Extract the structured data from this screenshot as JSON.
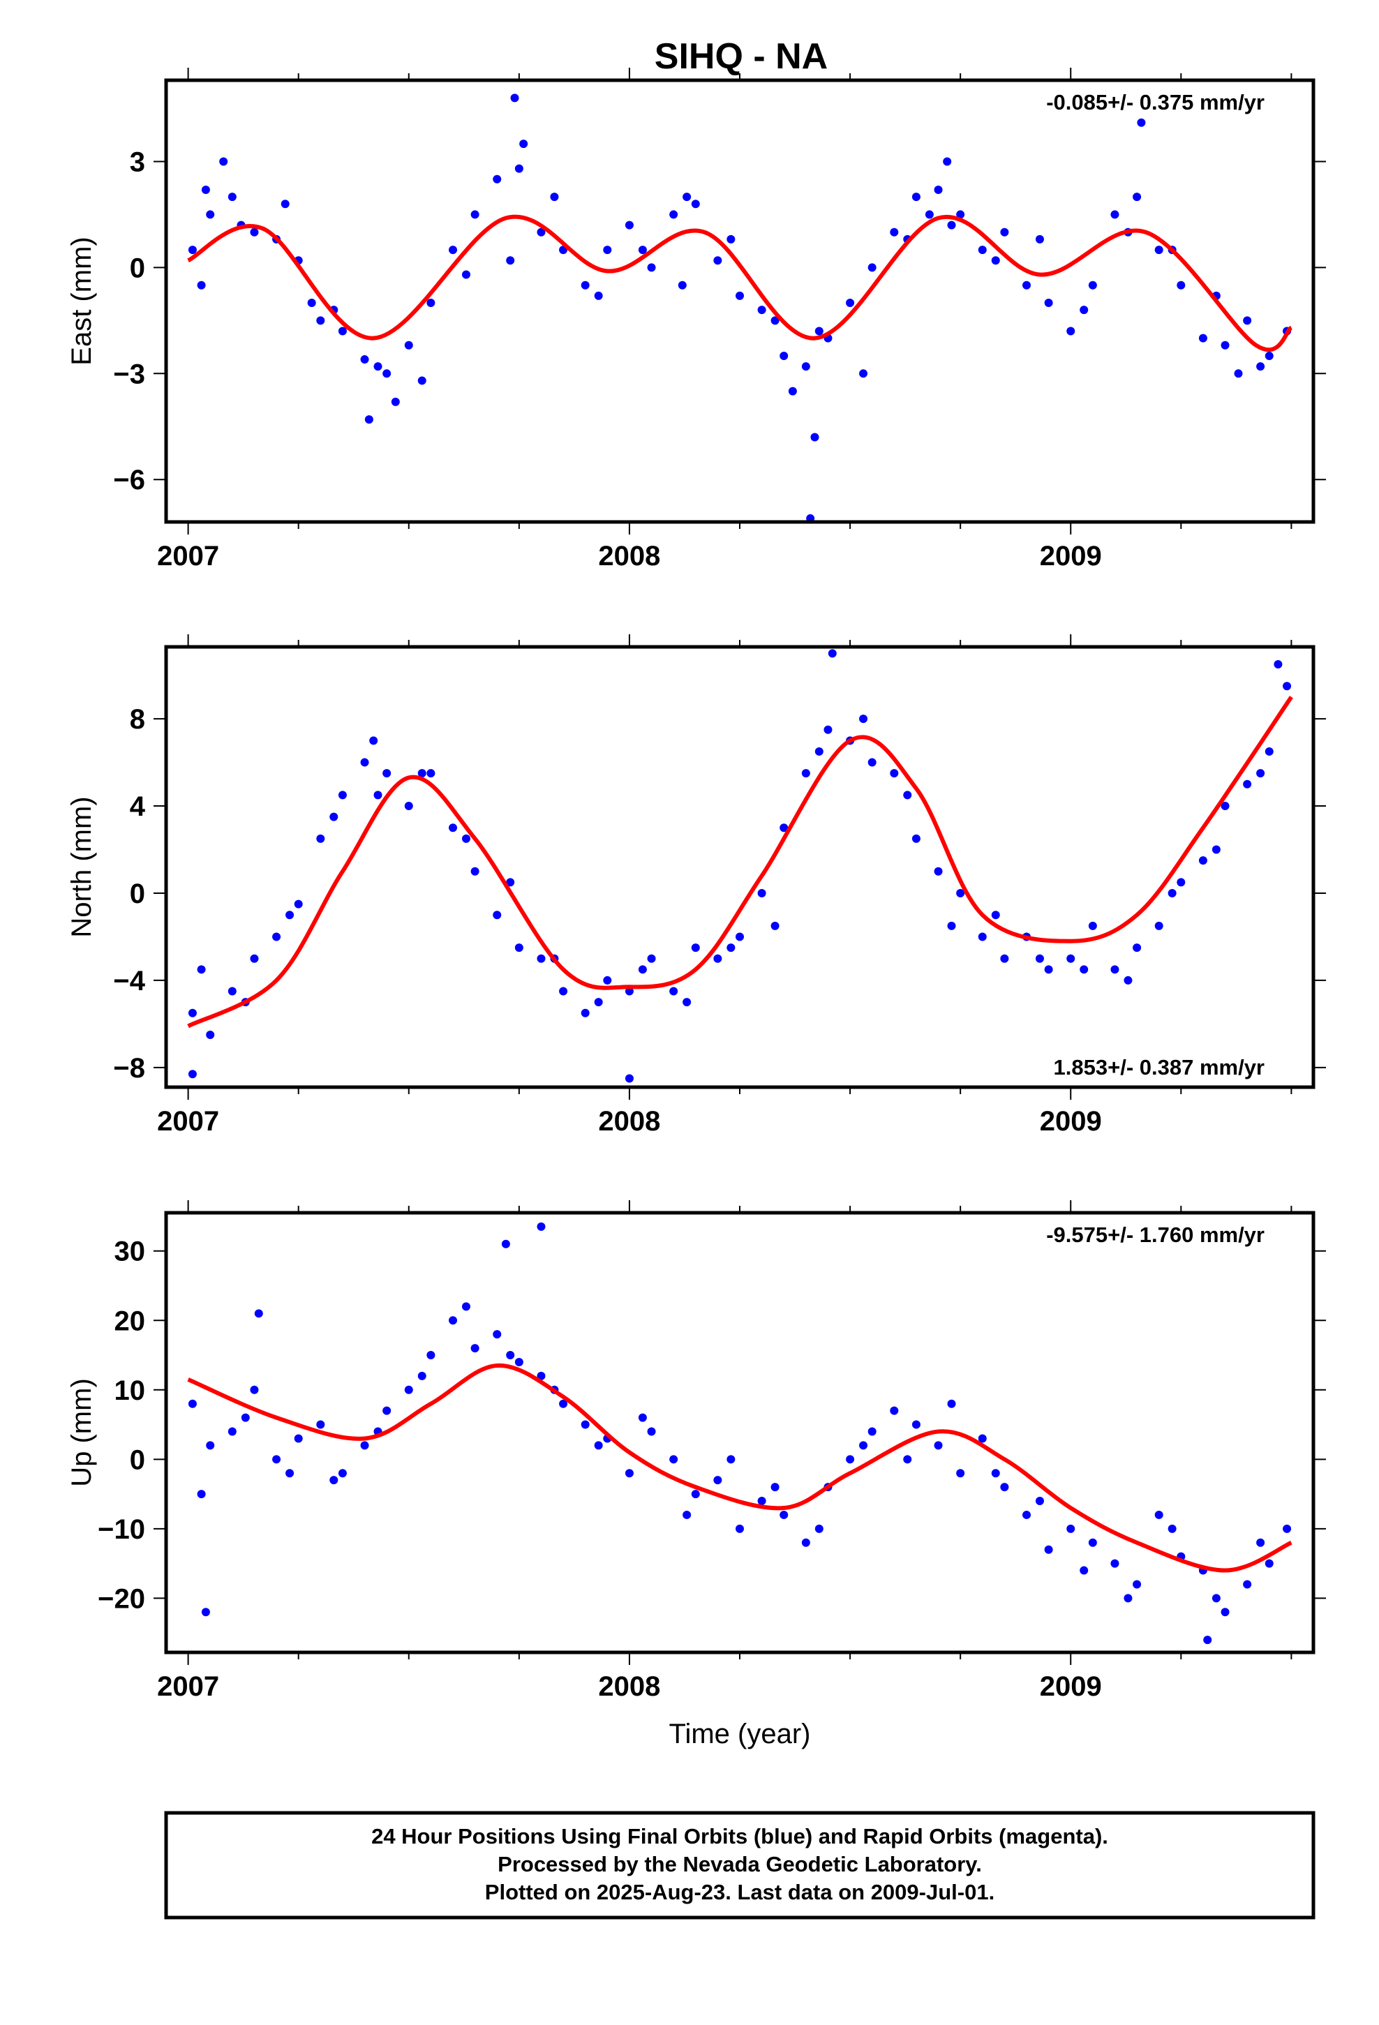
{
  "title": "SIHQ - NA",
  "chart_data": [
    {
      "type": "scatter",
      "component": "East",
      "ylabel": "East (mm)",
      "ylim": [
        -7.2,
        5.3
      ],
      "yticks": [
        3,
        0,
        -3,
        -6
      ],
      "ytick_labels": [
        "3",
        "0",
        "−3",
        "−6"
      ],
      "xlim": [
        2006.95,
        2009.55
      ],
      "xticks": [
        2007,
        2008,
        2009
      ],
      "xtick_labels": [
        "2007",
        "2008",
        "2009"
      ],
      "rate": "-0.085+/- 0.375 mm/yr",
      "rate_position": "top-right",
      "fit": {
        "x": [
          2007.0,
          2007.17,
          2007.42,
          2007.72,
          2007.95,
          2008.17,
          2008.42,
          2008.7,
          2008.93,
          2009.17,
          2009.42,
          2009.5
        ],
        "y": [
          0.2,
          1.1,
          -2.0,
          1.4,
          -0.1,
          1.0,
          -2.0,
          1.4,
          -0.2,
          1.0,
          -2.2,
          -1.7
        ]
      },
      "series": [
        {
          "name": "Final Orbits",
          "color": "#0000ff",
          "x": [
            2007.01,
            2007.05,
            2007.1,
            2007.15,
            2007.2,
            2007.25,
            2007.3,
            2007.35,
            2007.4,
            2007.45,
            2007.5,
            2007.55,
            2007.6,
            2007.65,
            2007.7,
            2007.75,
            2007.8,
            2007.85,
            2007.9,
            2007.95,
            2008.0,
            2008.05,
            2008.1,
            2008.15,
            2008.2,
            2008.25,
            2008.3,
            2008.35,
            2008.4,
            2008.45,
            2008.5,
            2008.55,
            2008.6,
            2008.65,
            2008.7,
            2008.75,
            2008.8,
            2008.85,
            2008.9,
            2008.95,
            2009.0,
            2009.05,
            2009.1,
            2009.15,
            2009.2,
            2009.25,
            2009.3,
            2009.35,
            2009.4,
            2009.45,
            2009.49,
            2007.04,
            2007.12,
            2007.22,
            2007.33,
            2007.43,
            2007.53,
            2007.63,
            2007.73,
            2007.83,
            2007.93,
            2008.03,
            2008.13,
            2008.23,
            2008.33,
            2008.43,
            2008.53,
            2008.63,
            2008.73,
            2008.83,
            2008.93,
            2009.03,
            2009.13,
            2009.23,
            2009.33,
            2009.43,
            2007.08,
            2007.28,
            2007.41,
            2007.47,
            2007.76,
            2008.12,
            2008.37,
            2008.42,
            2008.72,
            2009.16,
            2009.38,
            2007.74,
            2008.41,
            2007.03,
            2008.68
          ],
          "y": [
            0.5,
            1.5,
            2.0,
            1.0,
            0.8,
            0.2,
            -1.5,
            -1.8,
            -2.6,
            -3.0,
            -2.2,
            -1.0,
            0.5,
            1.5,
            2.5,
            2.8,
            1.0,
            0.5,
            -0.5,
            0.5,
            1.2,
            0.0,
            1.5,
            1.8,
            0.2,
            -0.8,
            -1.2,
            -2.5,
            -2.8,
            -2.0,
            -1.0,
            0.0,
            1.0,
            2.0,
            2.2,
            1.5,
            0.5,
            1.0,
            -0.5,
            -1.0,
            -1.8,
            -0.5,
            1.5,
            2.0,
            0.5,
            -0.5,
            -2.0,
            -2.2,
            -1.5,
            -2.5,
            -1.8,
            2.2,
            1.2,
            1.8,
            -1.2,
            -2.8,
            -3.2,
            -0.2,
            0.2,
            2.0,
            -0.8,
            0.5,
            2.0,
            0.8,
            -1.5,
            -1.8,
            -3.0,
            0.8,
            1.2,
            0.2,
            0.8,
            -1.2,
            1.0,
            0.5,
            -0.8,
            -2.8,
            3.0,
            -1.0,
            -4.3,
            -3.8,
            3.5,
            -0.5,
            -3.5,
            -4.8,
            3.0,
            4.1,
            -3.0,
            4.8,
            -7.1,
            -0.5,
            1.5
          ]
        }
      ]
    },
    {
      "type": "scatter",
      "component": "North",
      "ylabel": "North (mm)",
      "ylim": [
        -8.9,
        11.3
      ],
      "yticks": [
        8,
        4,
        0,
        -4,
        -8
      ],
      "ytick_labels": [
        "8",
        "4",
        "0",
        "−4",
        "−8"
      ],
      "xlim": [
        2006.95,
        2009.55
      ],
      "xticks": [
        2007,
        2008,
        2009
      ],
      "xtick_labels": [
        "2007",
        "2008",
        "2009"
      ],
      "rate": "1.853+/- 0.387 mm/yr",
      "rate_position": "bottom-right",
      "fit": {
        "x": [
          2007.0,
          2007.2,
          2007.35,
          2007.5,
          2007.65,
          2007.85,
          2008.0,
          2008.15,
          2008.3,
          2008.5,
          2008.65,
          2008.8,
          2009.0,
          2009.15,
          2009.3,
          2009.5
        ],
        "y": [
          -6.1,
          -4.0,
          1.0,
          5.3,
          2.5,
          -3.5,
          -4.3,
          -3.5,
          0.8,
          7.0,
          4.8,
          -1.0,
          -2.2,
          -1.0,
          3.0,
          9.0
        ]
      },
      "series": [
        {
          "name": "Final Orbits",
          "color": "#0000ff",
          "x": [
            2007.01,
            2007.05,
            2007.1,
            2007.15,
            2007.2,
            2007.25,
            2007.3,
            2007.35,
            2007.4,
            2007.45,
            2007.5,
            2007.55,
            2007.6,
            2007.65,
            2007.7,
            2007.75,
            2007.8,
            2007.85,
            2007.9,
            2007.95,
            2008.0,
            2008.05,
            2008.1,
            2008.15,
            2008.2,
            2008.25,
            2008.3,
            2008.35,
            2008.4,
            2008.45,
            2008.5,
            2008.55,
            2008.6,
            2008.65,
            2008.7,
            2008.75,
            2008.8,
            2008.85,
            2008.9,
            2008.95,
            2009.0,
            2009.05,
            2009.1,
            2009.15,
            2009.2,
            2009.25,
            2009.3,
            2009.35,
            2009.4,
            2009.45,
            2009.49,
            2007.03,
            2007.13,
            2007.23,
            2007.33,
            2007.43,
            2007.53,
            2007.63,
            2007.73,
            2007.83,
            2007.93,
            2008.03,
            2008.13,
            2008.23,
            2008.33,
            2008.43,
            2008.53,
            2008.63,
            2008.73,
            2008.83,
            2008.93,
            2009.03,
            2009.13,
            2009.23,
            2009.33,
            2009.43,
            2008.46,
            2007.42,
            2008.0,
            2007.01,
            2009.47
          ],
          "y": [
            -5.5,
            -6.5,
            -4.5,
            -3.0,
            -2.0,
            -0.5,
            2.5,
            4.5,
            6.0,
            5.5,
            4.0,
            5.5,
            3.0,
            1.0,
            -1.0,
            -2.5,
            -3.0,
            -4.5,
            -5.5,
            -4.0,
            -4.5,
            -3.0,
            -4.5,
            -2.5,
            -3.0,
            -2.0,
            0.0,
            3.0,
            5.5,
            7.5,
            7.0,
            6.0,
            5.5,
            2.5,
            1.0,
            0.0,
            -2.0,
            -3.0,
            -2.0,
            -3.5,
            -3.0,
            -1.5,
            -3.5,
            -2.5,
            -1.5,
            0.5,
            1.5,
            4.0,
            5.0,
            6.5,
            9.5,
            -3.5,
            -5.0,
            -1.0,
            3.5,
            4.5,
            5.5,
            2.5,
            0.5,
            -3.0,
            -5.0,
            -3.5,
            -5.0,
            -2.5,
            -1.5,
            6.5,
            8.0,
            4.5,
            -1.5,
            -1.0,
            -3.0,
            -3.5,
            -4.0,
            0.0,
            2.0,
            5.5,
            11.0,
            7.0,
            -8.5,
            -8.3,
            10.5
          ]
        }
      ]
    },
    {
      "type": "scatter",
      "component": "Up",
      "ylabel": "Up (mm)",
      "ylim": [
        -27.8,
        35.5
      ],
      "yticks": [
        30,
        20,
        10,
        0,
        -10,
        -20
      ],
      "ytick_labels": [
        "30",
        "20",
        "10",
        "0",
        "−10",
        "−20"
      ],
      "xlim": [
        2006.95,
        2009.55
      ],
      "xticks": [
        2007,
        2008,
        2009
      ],
      "xtick_labels": [
        "2007",
        "2008",
        "2009"
      ],
      "xlabel": "Time (year)",
      "rate": "-9.575+/- 1.760 mm/yr",
      "rate_position": "top-right",
      "fit": {
        "x": [
          2007.0,
          2007.2,
          2007.4,
          2007.55,
          2007.7,
          2007.85,
          2008.0,
          2008.15,
          2008.35,
          2008.5,
          2008.7,
          2008.85,
          2009.0,
          2009.15,
          2009.35,
          2009.5
        ],
        "y": [
          11.5,
          6.0,
          3.0,
          8.0,
          13.5,
          9.0,
          1.0,
          -4.0,
          -7.0,
          -2.0,
          4.0,
          0.0,
          -7.0,
          -12.0,
          -16.0,
          -12.0
        ]
      },
      "series": [
        {
          "name": "Final Orbits",
          "color": "#0000ff",
          "x": [
            2007.01,
            2007.05,
            2007.1,
            2007.15,
            2007.2,
            2007.25,
            2007.3,
            2007.35,
            2007.4,
            2007.45,
            2007.5,
            2007.55,
            2007.6,
            2007.65,
            2007.7,
            2007.75,
            2007.8,
            2007.85,
            2007.9,
            2007.95,
            2008.0,
            2008.05,
            2008.1,
            2008.15,
            2008.2,
            2008.25,
            2008.3,
            2008.35,
            2008.4,
            2008.45,
            2008.5,
            2008.55,
            2008.6,
            2008.65,
            2008.7,
            2008.75,
            2008.8,
            2008.85,
            2008.9,
            2008.95,
            2009.0,
            2009.05,
            2009.1,
            2009.15,
            2009.2,
            2009.25,
            2009.3,
            2009.35,
            2009.4,
            2009.45,
            2009.49,
            2007.03,
            2007.13,
            2007.23,
            2007.33,
            2007.43,
            2007.53,
            2007.63,
            2007.73,
            2007.83,
            2007.93,
            2008.03,
            2008.13,
            2008.23,
            2008.33,
            2008.43,
            2008.53,
            2008.63,
            2008.73,
            2008.83,
            2008.93,
            2009.03,
            2009.13,
            2009.23,
            2009.33,
            2009.43,
            2007.72,
            2007.8,
            2007.04,
            2007.16,
            2009.31
          ],
          "y": [
            8.0,
            2.0,
            4.0,
            10.0,
            0.0,
            3.0,
            5.0,
            -2.0,
            2.0,
            7.0,
            10.0,
            15.0,
            20.0,
            16.0,
            18.0,
            14.0,
            12.0,
            8.0,
            5.0,
            3.0,
            -2.0,
            4.0,
            0.0,
            -5.0,
            -3.0,
            -10.0,
            -6.0,
            -8.0,
            -12.0,
            -4.0,
            0.0,
            4.0,
            7.0,
            5.0,
            2.0,
            -2.0,
            3.0,
            -4.0,
            -8.0,
            -13.0,
            -10.0,
            -12.0,
            -15.0,
            -18.0,
            -8.0,
            -14.0,
            -16.0,
            -22.0,
            -18.0,
            -15.0,
            -10.0,
            -5.0,
            6.0,
            -2.0,
            -3.0,
            4.0,
            12.0,
            22.0,
            15.0,
            10.0,
            2.0,
            6.0,
            -8.0,
            0.0,
            -4.0,
            -10.0,
            2.0,
            0.0,
            8.0,
            -2.0,
            -6.0,
            -16.0,
            -20.0,
            -10.0,
            -20.0,
            -12.0,
            31.0,
            33.5,
            -22.0,
            21.0,
            -26.0
          ]
        }
      ]
    }
  ],
  "footer": {
    "line1": "24 Hour Positions Using Final Orbits (blue) and Rapid Orbits (magenta).",
    "line2": "Processed by the Nevada Geodetic Laboratory.",
    "line3": "Plotted on 2025-Aug-23. Last data on 2009-Jul-01."
  },
  "colors": {
    "data": "#0000ff",
    "fit": "#ff0000",
    "frame": "#000000"
  }
}
